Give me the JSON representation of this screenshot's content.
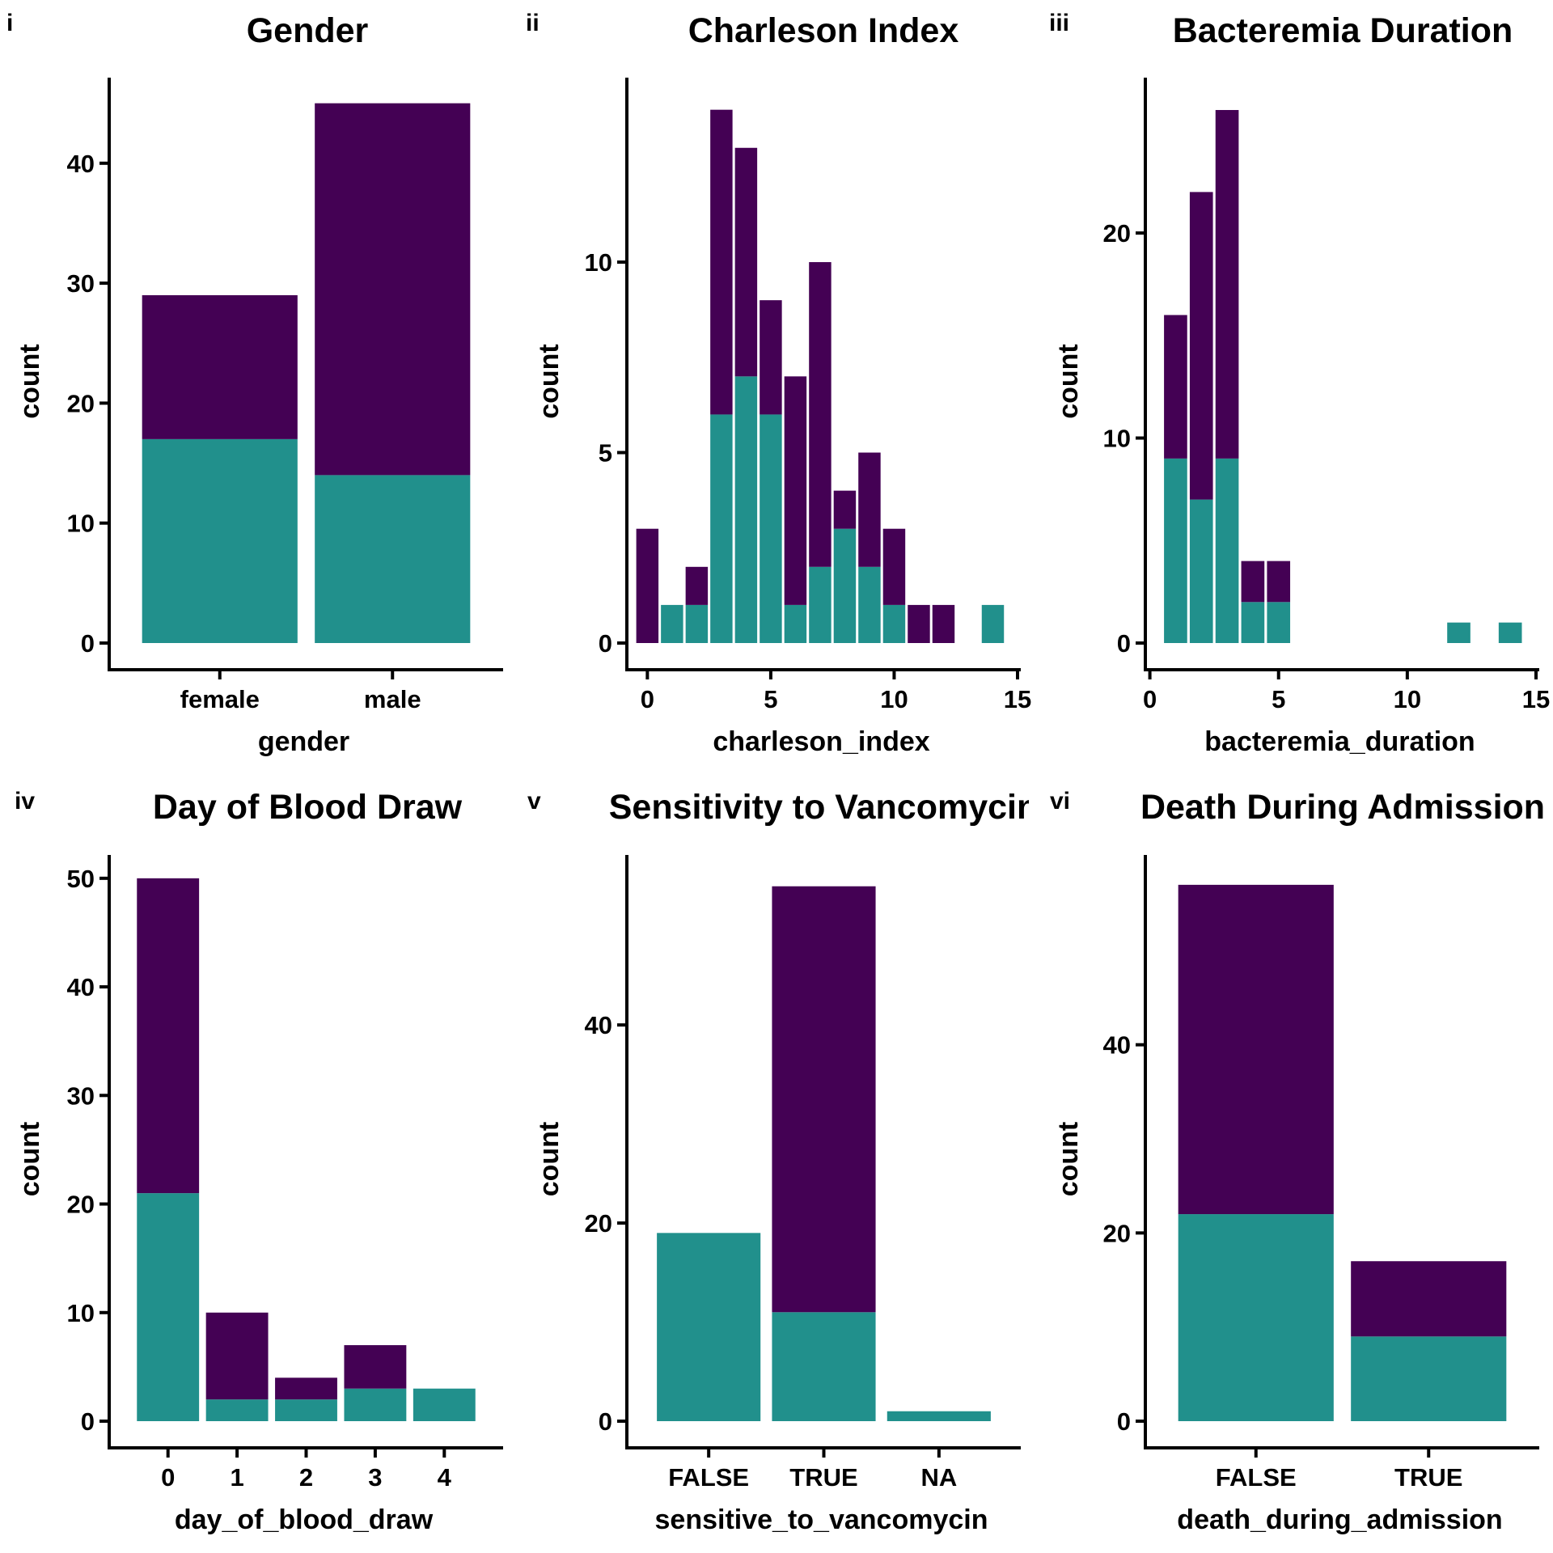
{
  "colors": {
    "purple": "#440154",
    "teal": "#21908C"
  },
  "chart_data": [
    {
      "type": "bar",
      "stacked": true,
      "panel_label": "i",
      "title": "Gender",
      "xlabel": "gender",
      "ylabel": "count",
      "categories": [
        "female",
        "male"
      ],
      "ylim": [
        0,
        47
      ],
      "yticks": [
        0,
        10,
        20,
        30,
        40
      ],
      "series": [
        {
          "color": "teal",
          "values": [
            17,
            14
          ]
        },
        {
          "color": "purple",
          "values": [
            12,
            31
          ]
        }
      ]
    },
    {
      "type": "bar",
      "stacked": true,
      "histogram": true,
      "panel_label": "ii",
      "title": "Charleson Index",
      "xlabel": "charleson_index",
      "ylabel": "count",
      "x": [
        0,
        1,
        2,
        3,
        4,
        5,
        6,
        7,
        8,
        9,
        10,
        11,
        12,
        14
      ],
      "bin_width": 0.9,
      "xlim": [
        -0.7,
        15
      ],
      "xticks": [
        0,
        5,
        10,
        15
      ],
      "ylim": [
        0,
        14.8
      ],
      "yticks": [
        0,
        5,
        10
      ],
      "series": [
        {
          "color": "teal",
          "values": [
            0,
            1,
            1,
            6,
            7,
            6,
            1,
            2,
            3,
            2,
            1,
            0,
            0,
            1
          ]
        },
        {
          "color": "purple",
          "values": [
            3,
            0,
            1,
            8,
            6,
            3,
            6,
            8,
            1,
            3,
            2,
            1,
            1,
            0
          ]
        }
      ]
    },
    {
      "type": "bar",
      "stacked": true,
      "histogram": true,
      "panel_label": "iii",
      "title": "Bacteremia Duration",
      "xlabel": "bacteremia_duration",
      "ylabel": "count",
      "x": [
        1,
        2,
        3,
        4,
        5,
        12,
        14
      ],
      "bin_width": 0.9,
      "xlim": [
        -0.05,
        15
      ],
      "xticks": [
        0,
        5,
        10,
        15
      ],
      "ylim": [
        0,
        27.5
      ],
      "yticks": [
        0,
        10,
        20
      ],
      "series": [
        {
          "color": "teal",
          "values": [
            9,
            7,
            9,
            2,
            2,
            1,
            1
          ]
        },
        {
          "color": "purple",
          "values": [
            7,
            15,
            17,
            2,
            2,
            0,
            0
          ]
        }
      ]
    },
    {
      "type": "bar",
      "stacked": true,
      "panel_label": "iv",
      "title": "Day of Blood Draw",
      "xlabel": "day_of_blood_draw",
      "ylabel": "count",
      "categories": [
        "0",
        "1",
        "2",
        "3",
        "4"
      ],
      "ylim": [
        0,
        52
      ],
      "yticks": [
        0,
        10,
        20,
        30,
        40,
        50
      ],
      "series": [
        {
          "color": "teal",
          "values": [
            21,
            2,
            2,
            3,
            3
          ]
        },
        {
          "color": "purple",
          "values": [
            29,
            8,
            2,
            4,
            0
          ]
        }
      ]
    },
    {
      "type": "bar",
      "stacked": true,
      "panel_label": "v",
      "title": "Sensitivity to Vancomycin",
      "xlabel": "sensitive_to_vancomycin",
      "ylabel": "count",
      "categories": [
        "FALSE",
        "TRUE",
        "NA"
      ],
      "ylim": [
        0,
        57
      ],
      "yticks": [
        0,
        20,
        40
      ],
      "series": [
        {
          "color": "teal",
          "values": [
            19,
            11,
            1
          ]
        },
        {
          "color": "purple",
          "values": [
            0,
            43,
            0
          ]
        }
      ]
    },
    {
      "type": "bar",
      "stacked": true,
      "panel_label": "vi",
      "title": "Death During Admission",
      "xlabel": "death_during_admission",
      "ylabel": "count",
      "categories": [
        "FALSE",
        "TRUE"
      ],
      "ylim": [
        0,
        60
      ],
      "yticks": [
        0,
        20,
        40
      ],
      "series": [
        {
          "color": "teal",
          "values": [
            22,
            9
          ]
        },
        {
          "color": "purple",
          "values": [
            35,
            8
          ]
        }
      ]
    }
  ]
}
